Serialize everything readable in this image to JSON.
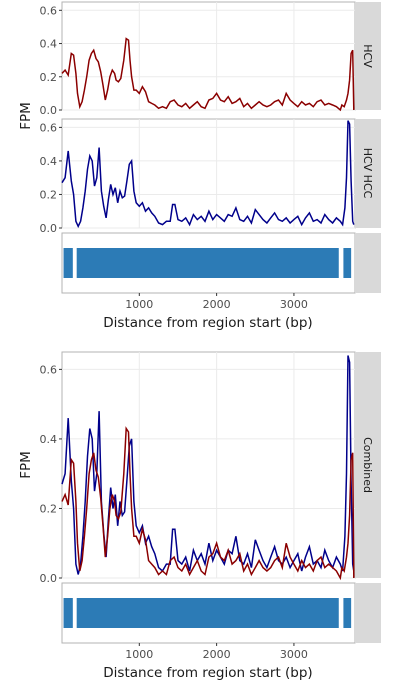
{
  "colors": {
    "HCV": "#8b0000",
    "HCV HCC": "#00008b",
    "feature": "#2c7bb6",
    "strip_bg": "#d9d9d9"
  },
  "chart_data": [
    {
      "type": "line",
      "facets": [
        "HCV",
        "HCV HCC"
      ],
      "ylabel": "FPM",
      "xlabel": "Distance from region start (bp)",
      "xlim": [
        0,
        3790
      ],
      "ylim": [
        0,
        0.65
      ],
      "x_ticks": [
        1000,
        2000,
        3000
      ],
      "y_ticks": [
        "0.0",
        "0.2",
        "0.4",
        "0.6"
      ],
      "series": [
        {
          "name": "HCV",
          "x": [
            0,
            40,
            80,
            120,
            150,
            180,
            200,
            230,
            260,
            290,
            320,
            350,
            380,
            410,
            440,
            470,
            500,
            530,
            560,
            590,
            620,
            650,
            680,
            700,
            730,
            760,
            800,
            830,
            860,
            880,
            900,
            930,
            960,
            1000,
            1040,
            1080,
            1120,
            1160,
            1200,
            1250,
            1300,
            1350,
            1400,
            1450,
            1500,
            1550,
            1600,
            1650,
            1700,
            1750,
            1800,
            1850,
            1900,
            1950,
            2000,
            2050,
            2100,
            2150,
            2200,
            2250,
            2300,
            2350,
            2400,
            2450,
            2500,
            2550,
            2600,
            2650,
            2700,
            2750,
            2800,
            2850,
            2900,
            2950,
            3000,
            3050,
            3100,
            3150,
            3200,
            3250,
            3300,
            3350,
            3400,
            3450,
            3500,
            3550,
            3600,
            3620,
            3650,
            3680,
            3700,
            3720,
            3740,
            3760,
            3775
          ],
          "values": [
            0.22,
            0.24,
            0.21,
            0.34,
            0.33,
            0.22,
            0.1,
            0.02,
            0.05,
            0.12,
            0.2,
            0.3,
            0.34,
            0.36,
            0.31,
            0.29,
            0.23,
            0.15,
            0.06,
            0.12,
            0.2,
            0.24,
            0.22,
            0.18,
            0.17,
            0.19,
            0.3,
            0.43,
            0.42,
            0.3,
            0.2,
            0.12,
            0.12,
            0.1,
            0.14,
            0.11,
            0.05,
            0.04,
            0.03,
            0.01,
            0.02,
            0.01,
            0.05,
            0.06,
            0.03,
            0.02,
            0.04,
            0.01,
            0.03,
            0.05,
            0.02,
            0.01,
            0.06,
            0.07,
            0.1,
            0.06,
            0.05,
            0.08,
            0.04,
            0.05,
            0.07,
            0.02,
            0.04,
            0.01,
            0.03,
            0.05,
            0.03,
            0.02,
            0.03,
            0.05,
            0.06,
            0.03,
            0.1,
            0.06,
            0.04,
            0.02,
            0.05,
            0.03,
            0.04,
            0.02,
            0.05,
            0.06,
            0.03,
            0.04,
            0.03,
            0.02,
            0.0,
            0.03,
            0.02,
            0.06,
            0.1,
            0.18,
            0.34,
            0.36,
            0.0
          ]
        },
        {
          "name": "HCV HCC",
          "x": [
            0,
            40,
            80,
            120,
            150,
            180,
            210,
            240,
            270,
            300,
            330,
            360,
            390,
            420,
            450,
            480,
            510,
            540,
            570,
            600,
            630,
            660,
            690,
            720,
            750,
            780,
            810,
            840,
            870,
            900,
            930,
            960,
            1000,
            1040,
            1080,
            1120,
            1160,
            1200,
            1250,
            1300,
            1350,
            1400,
            1430,
            1460,
            1500,
            1550,
            1600,
            1650,
            1700,
            1750,
            1800,
            1850,
            1900,
            1950,
            2000,
            2050,
            2100,
            2150,
            2200,
            2250,
            2300,
            2350,
            2400,
            2450,
            2500,
            2550,
            2600,
            2650,
            2700,
            2750,
            2800,
            2850,
            2900,
            2950,
            3000,
            3050,
            3100,
            3150,
            3200,
            3250,
            3300,
            3350,
            3400,
            3450,
            3500,
            3550,
            3600,
            3630,
            3660,
            3680,
            3700,
            3720,
            3740,
            3760,
            3775
          ],
          "values": [
            0.27,
            0.3,
            0.46,
            0.28,
            0.2,
            0.04,
            0.01,
            0.04,
            0.12,
            0.22,
            0.35,
            0.43,
            0.4,
            0.25,
            0.3,
            0.48,
            0.22,
            0.13,
            0.06,
            0.17,
            0.26,
            0.2,
            0.24,
            0.15,
            0.22,
            0.18,
            0.19,
            0.28,
            0.38,
            0.4,
            0.22,
            0.15,
            0.13,
            0.15,
            0.1,
            0.12,
            0.09,
            0.07,
            0.03,
            0.02,
            0.04,
            0.04,
            0.14,
            0.14,
            0.05,
            0.04,
            0.06,
            0.02,
            0.08,
            0.05,
            0.07,
            0.04,
            0.1,
            0.05,
            0.08,
            0.06,
            0.04,
            0.08,
            0.07,
            0.12,
            0.05,
            0.04,
            0.07,
            0.03,
            0.11,
            0.08,
            0.05,
            0.03,
            0.06,
            0.09,
            0.05,
            0.04,
            0.06,
            0.03,
            0.05,
            0.07,
            0.02,
            0.06,
            0.09,
            0.04,
            0.05,
            0.03,
            0.08,
            0.05,
            0.03,
            0.06,
            0.04,
            0.02,
            0.12,
            0.3,
            0.64,
            0.62,
            0.28,
            0.04,
            0.02
          ]
        }
      ],
      "feature_blocks": [
        [
          20,
          140
        ],
        [
          190,
          3580
        ],
        [
          3640,
          3740
        ]
      ]
    },
    {
      "type": "line",
      "facets": [
        "Combined"
      ],
      "ylabel": "FPM",
      "xlabel": "Distance from region start (bp)",
      "xlim": [
        0,
        3790
      ],
      "ylim": [
        0,
        0.65
      ],
      "x_ticks": [
        1000,
        2000,
        3000
      ],
      "y_ticks": [
        "0.0",
        "0.2",
        "0.4",
        "0.6"
      ],
      "series_refs": [
        "HCV",
        "HCV HCC"
      ],
      "feature_blocks": [
        [
          20,
          140
        ],
        [
          190,
          3580
        ],
        [
          3640,
          3740
        ]
      ]
    }
  ]
}
